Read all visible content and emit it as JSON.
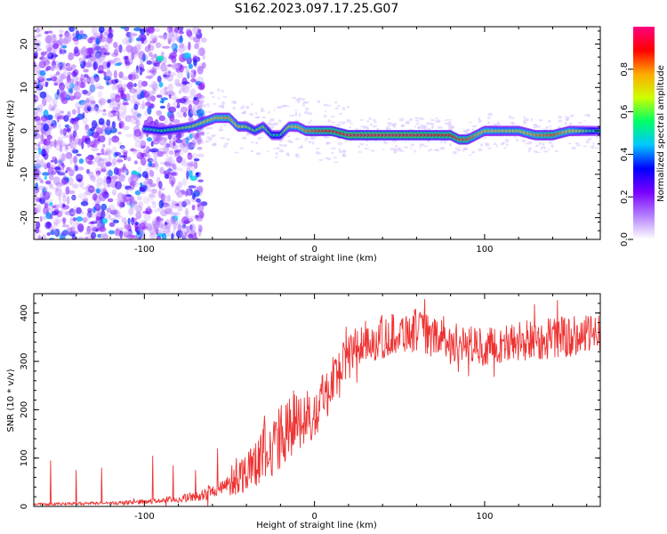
{
  "title": "S162.2023.097.17.25.G07",
  "chart_data": [
    {
      "type": "heatmap",
      "xlabel": "Height of straight line (km)",
      "ylabel": "Frequency (Hz)",
      "xlim": [
        -165,
        168
      ],
      "ylim": [
        -25,
        24
      ],
      "xticks": [
        -100,
        0,
        100
      ],
      "yticks": [
        -20,
        -10,
        0,
        10,
        20
      ],
      "colorbar": {
        "label": "Normalized spectral amplitude",
        "range": [
          0,
          1
        ],
        "ticks": [
          0.0,
          0.2,
          0.4,
          0.6,
          0.8
        ],
        "colors": [
          "#ffffff",
          "#b580ff",
          "#7a00ff",
          "#0000ff",
          "#00c8ff",
          "#00ff66",
          "#ccff00",
          "#ffaa00",
          "#ff0000",
          "#ff0080"
        ]
      },
      "ridge": {
        "x": [
          -100,
          -90,
          -80,
          -72,
          -65,
          -58,
          -50,
          -45,
          -40,
          -35,
          -30,
          -25,
          -20,
          -15,
          -10,
          -5,
          0,
          10,
          20,
          30,
          40,
          50,
          60,
          70,
          80,
          85,
          90,
          95,
          100,
          110,
          120,
          130,
          140,
          150,
          160,
          168
        ],
        "freq": [
          0.5,
          0,
          0.5,
          1,
          2,
          3,
          3,
          1,
          1,
          0,
          1,
          -1,
          -1,
          1,
          1,
          0,
          0,
          0,
          -1,
          -1,
          -1,
          -1,
          -1,
          -1,
          -1,
          -2,
          -2,
          -1,
          0,
          0,
          0,
          -1,
          -1,
          0,
          0,
          0
        ],
        "amplitude": [
          0.5,
          0.55,
          0.6,
          0.65,
          0.7,
          0.75,
          0.8,
          0.7,
          0.65,
          0.6,
          0.65,
          0.55,
          0.55,
          0.7,
          0.75,
          0.8,
          0.85,
          0.9,
          0.95,
          0.95,
          0.95,
          0.95,
          0.95,
          0.9,
          0.9,
          0.85,
          0.85,
          0.8,
          0.75,
          0.7,
          0.7,
          0.8,
          0.85,
          0.75,
          0.6,
          0.5
        ]
      }
    },
    {
      "type": "line",
      "xlabel": "Height of straight line (km)",
      "ylabel": "SNR (10 * v/v)",
      "xlim": [
        -165,
        168
      ],
      "ylim": [
        0,
        440
      ],
      "xticks": [
        -100,
        0,
        100
      ],
      "yticks": [
        0,
        100,
        200,
        300,
        400
      ],
      "color": "#ee3333",
      "series": [
        {
          "x": [
            -165,
            -150,
            -135,
            -120,
            -110,
            -100,
            -90,
            -80,
            -70,
            -65,
            -60,
            -55,
            -50,
            -45,
            -40,
            -35,
            -30,
            -25,
            -20,
            -15,
            -10,
            -5,
            0,
            5,
            10,
            15,
            20,
            25,
            30,
            40,
            50,
            60,
            70,
            80,
            90,
            100,
            110,
            120,
            130,
            140,
            150,
            160,
            168
          ],
          "y": [
            5,
            5,
            6,
            7,
            8,
            10,
            12,
            15,
            20,
            25,
            30,
            35,
            45,
            60,
            75,
            95,
            110,
            125,
            140,
            160,
            175,
            185,
            200,
            230,
            255,
            280,
            310,
            330,
            340,
            350,
            360,
            365,
            350,
            340,
            335,
            330,
            335,
            340,
            345,
            350,
            350,
            355,
            360
          ],
          "band": [
            2,
            3,
            3,
            3,
            4,
            5,
            6,
            8,
            10,
            12,
            15,
            20,
            25,
            35,
            45,
            55,
            60,
            65,
            70,
            70,
            65,
            60,
            60,
            60,
            60,
            55,
            50,
            45,
            45,
            45,
            45,
            45,
            40,
            40,
            40,
            40,
            40,
            45,
            45,
            45,
            45,
            40,
            40
          ]
        }
      ],
      "spikes": {
        "x": [
          -155,
          -140,
          -125,
          -95,
          -83,
          -70,
          -57
        ],
        "y": [
          95,
          75,
          80,
          105,
          85,
          75,
          120
        ]
      }
    }
  ]
}
